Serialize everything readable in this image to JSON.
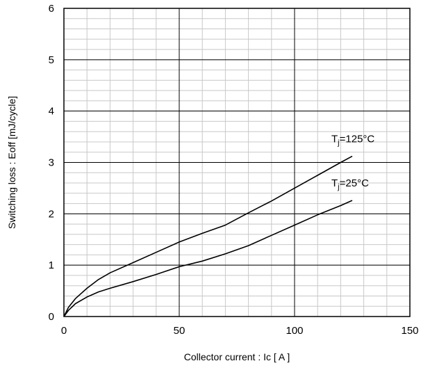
{
  "chart_data": {
    "type": "line",
    "xlabel": "Collector current  :  Ic [ A ]",
    "ylabel": "Switching loss  : Eoff [mJ/cycle]",
    "xlim": [
      0,
      150
    ],
    "ylim": [
      0,
      6
    ],
    "xticks": [
      0,
      50,
      100,
      150
    ],
    "yticks": [
      0,
      1,
      2,
      3,
      4,
      5,
      6
    ],
    "grid": true,
    "series": [
      {
        "name": "Tj=125°C",
        "label_parts": [
          "T",
          "j",
          "=125°C"
        ],
        "x": [
          0,
          2,
          5,
          10,
          15,
          20,
          30,
          40,
          50,
          60,
          70,
          80,
          90,
          100,
          110,
          120,
          125
        ],
        "y": [
          0,
          0.18,
          0.35,
          0.55,
          0.72,
          0.85,
          1.05,
          1.25,
          1.45,
          1.62,
          1.78,
          2.02,
          2.25,
          2.5,
          2.75,
          3.0,
          3.12
        ]
      },
      {
        "name": "Tj=25°C",
        "label_parts": [
          "T",
          "j",
          "=25°C"
        ],
        "x": [
          0,
          2,
          5,
          10,
          15,
          20,
          30,
          40,
          50,
          60,
          70,
          80,
          90,
          100,
          110,
          120,
          125
        ],
        "y": [
          0,
          0.12,
          0.25,
          0.38,
          0.48,
          0.55,
          0.68,
          0.82,
          0.97,
          1.08,
          1.22,
          1.38,
          1.58,
          1.78,
          1.98,
          2.16,
          2.26
        ]
      }
    ]
  }
}
